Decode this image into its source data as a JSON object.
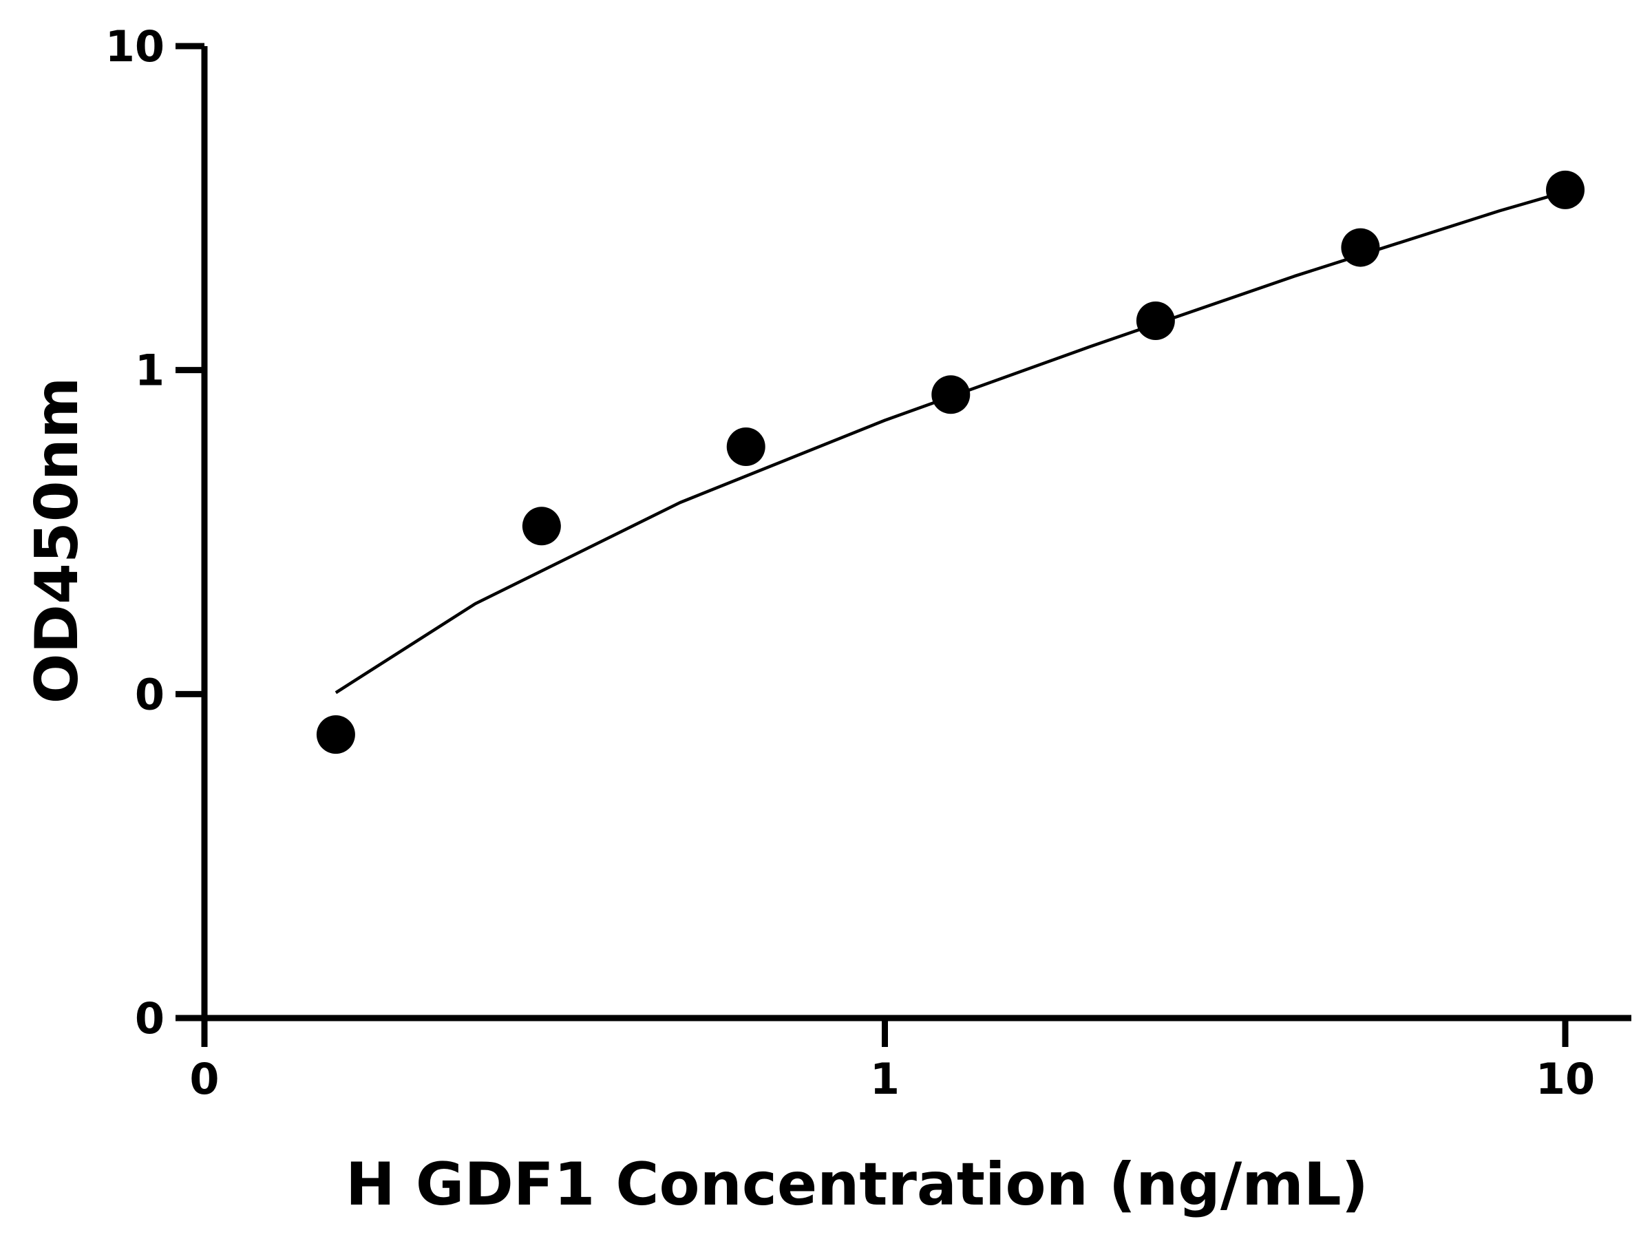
{
  "chart_data": {
    "type": "scatter",
    "title": "",
    "xlabel": "H GDF1 Concentration (ng/mL)",
    "ylabel": "OD450nm",
    "x_scale": "log",
    "y_scale": "log",
    "xlim": [
      0.1,
      10
    ],
    "ylim": [
      0.01,
      10
    ],
    "x_ticks": [
      {
        "value": 0.1,
        "label": "0"
      },
      {
        "value": 1,
        "label": "1"
      },
      {
        "value": 10,
        "label": "10"
      }
    ],
    "y_ticks": [
      {
        "value": 0.01,
        "label": "0"
      },
      {
        "value": 0.1,
        "label": "0"
      },
      {
        "value": 1,
        "label": "1"
      },
      {
        "value": 10,
        "label": "10"
      }
    ],
    "grid": false,
    "legend": "none",
    "series": [
      {
        "kind": "points",
        "x": [
          0.156,
          0.313,
          0.625,
          1.25,
          2.5,
          5,
          10
        ],
        "y": [
          0.075,
          0.33,
          0.58,
          0.84,
          1.42,
          2.39,
          3.6
        ]
      },
      {
        "kind": "fit-line",
        "x": [
          0.156,
          0.25,
          0.5,
          1,
          2,
          4,
          8,
          10
        ],
        "y": [
          0.101,
          0.19,
          0.39,
          0.7,
          1.18,
          1.95,
          3.1,
          3.55
        ]
      }
    ],
    "colors": {
      "points": "#000000",
      "line": "#000000",
      "axes": "#000000"
    }
  }
}
